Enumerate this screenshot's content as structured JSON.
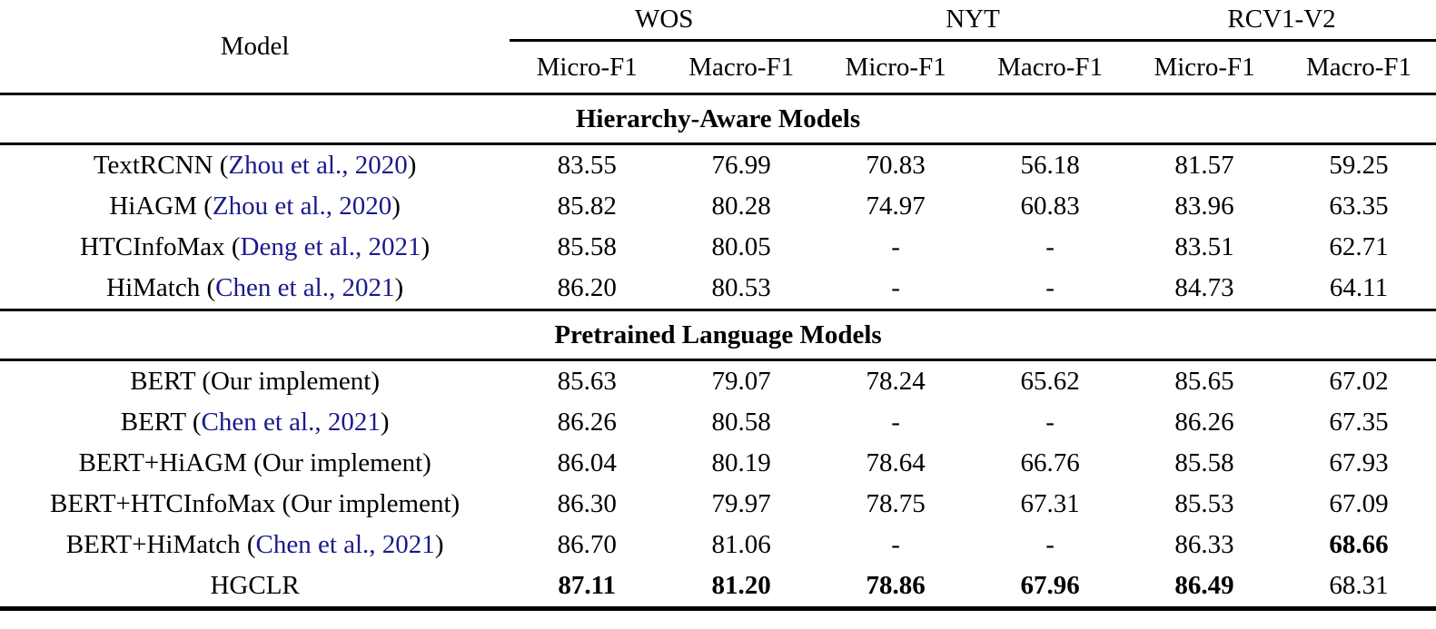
{
  "table": {
    "header": {
      "model_label": "Model",
      "groups": [
        {
          "label": "WOS"
        },
        {
          "label": "NYT"
        },
        {
          "label": "RCV1-V2"
        }
      ],
      "metric_labels": [
        "Micro-F1",
        "Macro-F1",
        "Micro-F1",
        "Macro-F1",
        "Micro-F1",
        "Macro-F1"
      ]
    },
    "sections": [
      {
        "title": "Hierarchy-Aware Models",
        "rows": [
          {
            "prefix": "TextRCNN (",
            "cite": "Zhou et al., 2020",
            "suffix": ")",
            "values": [
              "83.55",
              "76.99",
              "70.83",
              "56.18",
              "81.57",
              "59.25"
            ]
          },
          {
            "prefix": "HiAGM (",
            "cite": "Zhou et al., 2020",
            "suffix": ")",
            "values": [
              "85.82",
              "80.28",
              "74.97",
              "60.83",
              "83.96",
              "63.35"
            ]
          },
          {
            "prefix": "HTCInfoMax (",
            "cite": "Deng et al., 2021",
            "suffix": ")",
            "values": [
              "85.58",
              "80.05",
              "-",
              "-",
              "83.51",
              "62.71"
            ]
          },
          {
            "prefix": "HiMatch (",
            "cite": "Chen et al., 2021",
            "suffix": ")",
            "values": [
              "86.20",
              "80.53",
              "-",
              "-",
              "84.73",
              "64.11"
            ]
          }
        ]
      },
      {
        "title": "Pretrained Language Models",
        "rows": [
          {
            "prefix": "BERT (Our implement)",
            "cite": "",
            "suffix": "",
            "values": [
              "85.63",
              "79.07",
              "78.24",
              "65.62",
              "85.65",
              "67.02"
            ]
          },
          {
            "prefix": "BERT (",
            "cite": "Chen et al., 2021",
            "suffix": ")",
            "values": [
              "86.26",
              "80.58",
              "-",
              "-",
              "86.26",
              "67.35"
            ]
          },
          {
            "prefix": "BERT+HiAGM (Our implement)",
            "cite": "",
            "suffix": "",
            "values": [
              "86.04",
              "80.19",
              "78.64",
              "66.76",
              "85.58",
              "67.93"
            ]
          },
          {
            "prefix": "BERT+HTCInfoMax (Our implement)",
            "cite": "",
            "suffix": "",
            "values": [
              "86.30",
              "79.97",
              "78.75",
              "67.31",
              "85.53",
              "67.09"
            ]
          },
          {
            "prefix": "BERT+HiMatch (",
            "cite": "Chen et al., 2021",
            "suffix": ")",
            "values": [
              "86.70",
              "81.06",
              "-",
              "-",
              "86.33",
              "68.66"
            ],
            "bold": [
              false,
              false,
              false,
              false,
              false,
              true
            ]
          },
          {
            "prefix": "HGCLR",
            "cite": "",
            "suffix": "",
            "values": [
              "87.11",
              "81.20",
              "78.86",
              "67.96",
              "86.49",
              "68.31"
            ],
            "bold": [
              true,
              true,
              true,
              true,
              true,
              false
            ]
          }
        ]
      }
    ],
    "colors": {
      "citation_link": "#1a1a8c",
      "text": "#000000",
      "rule": "#000000"
    }
  }
}
